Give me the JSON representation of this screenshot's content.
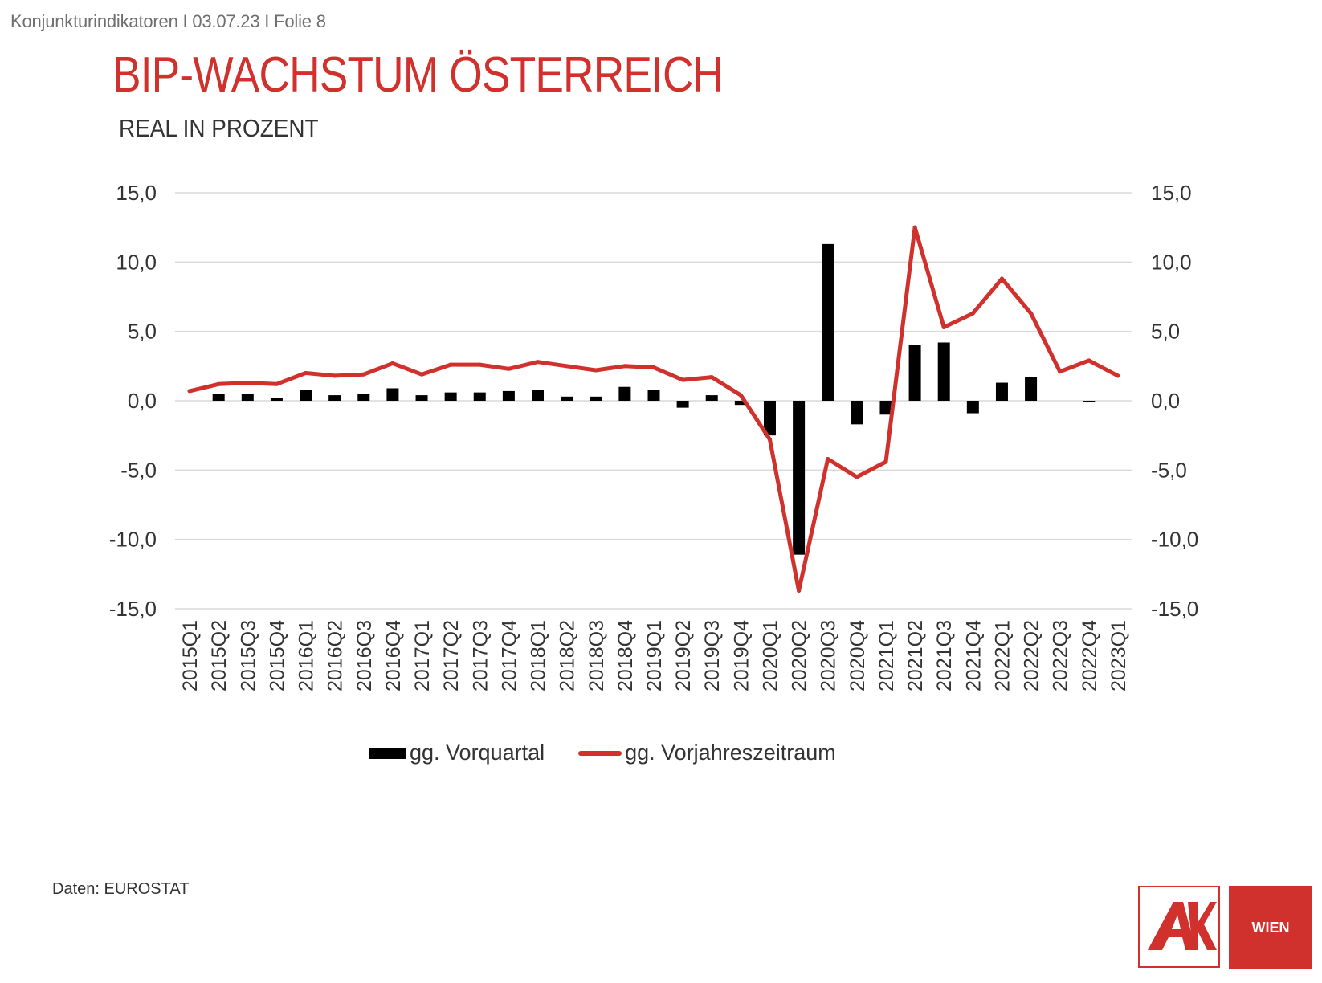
{
  "header": {
    "breadcrumb": "Konjunkturindikatoren I 03.07.23 I Folie 8"
  },
  "title": "BIP-WACHSTUM ÖSTERREICH",
  "subtitle": "REAL IN PROZENT",
  "source": "Daten: EUROSTAT",
  "logo": {
    "wordmark": "AK",
    "city": "WIEN"
  },
  "colors": {
    "accent": "#d0312d",
    "bar": "#000000",
    "grid": "#d9d9d9",
    "text": "#333333"
  },
  "chart_data": {
    "type": "bar",
    "categories": [
      "2015Q1",
      "2015Q2",
      "2015Q3",
      "2015Q4",
      "2016Q1",
      "2016Q2",
      "2016Q3",
      "2016Q4",
      "2017Q1",
      "2017Q2",
      "2017Q3",
      "2017Q4",
      "2018Q1",
      "2018Q2",
      "2018Q3",
      "2018Q4",
      "2019Q1",
      "2019Q2",
      "2019Q3",
      "2019Q4",
      "2020Q1",
      "2020Q2",
      "2020Q3",
      "2020Q4",
      "2021Q1",
      "2021Q2",
      "2021Q3",
      "2021Q4",
      "2022Q1",
      "2022Q2",
      "2022Q3",
      "2022Q4",
      "2023Q1"
    ],
    "series": [
      {
        "name": "gg. Vorquartal",
        "type": "bar",
        "color": "#000000",
        "values": [
          0.0,
          0.5,
          0.5,
          0.2,
          0.8,
          0.4,
          0.5,
          0.9,
          0.4,
          0.6,
          0.6,
          0.7,
          0.8,
          0.3,
          0.3,
          1.0,
          0.8,
          -0.5,
          0.4,
          -0.3,
          -2.5,
          -11.1,
          11.3,
          -1.7,
          -1.0,
          4.0,
          4.2,
          -0.9,
          1.3,
          1.7,
          0.0,
          -0.1,
          0.0
        ]
      },
      {
        "name": "gg. Vorjahreszeitraum",
        "type": "line",
        "color": "#d0312d",
        "values": [
          0.7,
          1.2,
          1.3,
          1.2,
          2.0,
          1.8,
          1.9,
          2.7,
          1.9,
          2.6,
          2.6,
          2.3,
          2.8,
          2.5,
          2.2,
          2.5,
          2.4,
          1.5,
          1.7,
          0.4,
          -2.8,
          -13.7,
          -4.2,
          -5.5,
          -4.4,
          12.5,
          5.3,
          6.3,
          8.8,
          6.3,
          2.1,
          2.9,
          1.8
        ]
      }
    ],
    "ylim": [
      -15,
      15
    ],
    "yticks": [
      "15,0",
      "10,0",
      "5,0",
      "0,0",
      "-5,0",
      "-10,0",
      "-15,0"
    ],
    "ytick_values": [
      15,
      10,
      5,
      0,
      -5,
      -10,
      -15
    ],
    "secondary_yticks": [
      "15,0",
      "10,0",
      "5,0",
      "0,0",
      "-5,0",
      "-10,0",
      "-15,0"
    ],
    "grid": true,
    "legend_position": "bottom"
  }
}
